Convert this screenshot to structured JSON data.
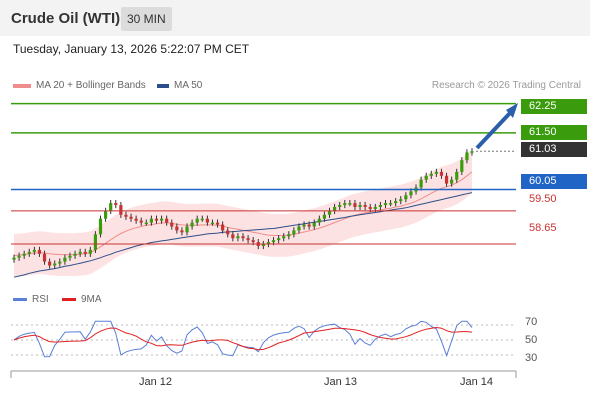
{
  "header": {
    "title": "Crude Oil (WTI)",
    "timeframe": "30 MIN"
  },
  "timestamp": "Tuesday, January 13, 2026 5:22:07 PM CET",
  "legend": {
    "ma20": {
      "label": "MA 20 + Bollinger Bands",
      "color": "#f08c8c"
    },
    "ma50": {
      "label": "MA 50",
      "color": "#2c4f8a"
    }
  },
  "credit": "Research © 2026 Trading Central",
  "levels": [
    {
      "value": 62.25,
      "label": "62.25",
      "kind": "resistance",
      "color": "#3a9c0c"
    },
    {
      "value": 61.5,
      "label": "61.50",
      "kind": "resistance",
      "color": "#3a9c0c"
    },
    {
      "value": 61.03,
      "label": "61.03",
      "kind": "last",
      "color": "#333333"
    },
    {
      "value": 60.05,
      "label": "60.05",
      "kind": "pivot",
      "color": "#2065c6"
    },
    {
      "value": 59.5,
      "label": "59.50",
      "kind": "support",
      "color": "#c83232"
    },
    {
      "value": 58.65,
      "label": "58.65",
      "kind": "support",
      "color": "#c83232"
    }
  ],
  "rsi": {
    "legend": [
      {
        "label": "RSI",
        "color": "#5a7fd6"
      },
      {
        "label": "9MA",
        "color": "#e02020"
      }
    ],
    "ticks": [
      70,
      50,
      30
    ]
  },
  "x_labels": [
    "Jan 12",
    "Jan 13",
    "Jan 14"
  ],
  "chart_data": {
    "type": "candlestick",
    "ylim": [
      57.6,
      62.6
    ],
    "series": [
      {
        "name": "Price",
        "values": [
          58.3,
          58.35,
          58.4,
          58.45,
          58.5,
          58.4,
          58.2,
          58.1,
          58.15,
          58.2,
          58.3,
          58.35,
          58.4,
          58.45,
          58.4,
          58.5,
          58.9,
          59.3,
          59.5,
          59.7,
          59.65,
          59.4,
          59.35,
          59.3,
          59.25,
          59.2,
          59.2,
          59.3,
          59.25,
          59.3,
          59.2,
          59.1,
          59.0,
          58.95,
          59.1,
          59.2,
          59.3,
          59.3,
          59.2,
          59.2,
          59.15,
          59.0,
          58.9,
          58.8,
          58.85,
          58.8,
          58.75,
          58.7,
          58.6,
          58.65,
          58.7,
          58.75,
          58.8,
          58.85,
          58.9,
          59.0,
          59.1,
          59.15,
          59.1,
          59.2,
          59.3,
          59.4,
          59.5,
          59.6,
          59.65,
          59.7,
          59.7,
          59.6,
          59.65,
          59.6,
          59.55,
          59.6,
          59.65,
          59.7,
          59.7,
          59.75,
          59.8,
          59.9,
          60.0,
          60.1,
          60.3,
          60.4,
          60.45,
          60.5,
          60.4,
          60.2,
          60.3,
          60.5,
          60.8,
          61.0,
          61.03
        ]
      }
    ],
    "ma20": [
      58.35,
      58.37,
      58.38,
      58.4,
      58.42,
      58.43,
      58.42,
      58.4,
      58.39,
      58.38,
      58.38,
      58.38,
      58.38,
      58.39,
      58.4,
      58.43,
      58.5,
      58.58,
      58.67,
      58.76,
      58.85,
      58.92,
      58.98,
      59.03,
      59.07,
      59.1,
      59.13,
      59.15,
      59.17,
      59.19,
      59.2,
      59.18,
      59.16,
      59.14,
      59.13,
      59.13,
      59.13,
      59.14,
      59.14,
      59.14,
      59.13,
      59.11,
      59.08,
      59.05,
      59.03,
      59.0,
      58.98,
      58.95,
      58.93,
      58.9,
      58.88,
      58.87,
      58.87,
      58.87,
      58.88,
      58.9,
      58.93,
      58.96,
      58.99,
      59.02,
      59.06,
      59.1,
      59.15,
      59.2,
      59.25,
      59.3,
      59.35,
      59.39,
      59.42,
      59.45,
      59.47,
      59.5,
      59.52,
      59.55,
      59.57,
      59.6,
      59.62,
      59.66,
      59.7,
      59.75,
      59.81,
      59.88,
      59.95,
      60.02,
      60.08,
      60.12,
      60.16,
      60.22,
      60.3,
      60.4,
      60.5
    ],
    "ma50": [
      57.8,
      57.83,
      57.86,
      57.9,
      57.93,
      57.96,
      57.98,
      58.0,
      58.02,
      58.05,
      58.08,
      58.1,
      58.13,
      58.16,
      58.19,
      58.22,
      58.26,
      58.3,
      58.35,
      58.39,
      58.44,
      58.48,
      58.52,
      58.56,
      58.6,
      58.63,
      58.66,
      58.69,
      58.71,
      58.73,
      58.75,
      58.77,
      58.79,
      58.81,
      58.83,
      58.85,
      58.87,
      58.89,
      58.91,
      58.92,
      58.93,
      58.95,
      58.96,
      58.97,
      58.98,
      58.99,
      59.0,
      59.01,
      59.02,
      59.03,
      59.04,
      59.05,
      59.07,
      59.09,
      59.11,
      59.13,
      59.15,
      59.17,
      59.19,
      59.21,
      59.23,
      59.25,
      59.27,
      59.29,
      59.31,
      59.33,
      59.36,
      59.38,
      59.4,
      59.42,
      59.44,
      59.46,
      59.48,
      59.5,
      59.52,
      59.54,
      59.56,
      59.58,
      59.61,
      59.64,
      59.67,
      59.7,
      59.73,
      59.76,
      59.79,
      59.82,
      59.85,
      59.88,
      59.91,
      59.94,
      59.97
    ],
    "rsi_range": [
      10,
      90
    ]
  }
}
